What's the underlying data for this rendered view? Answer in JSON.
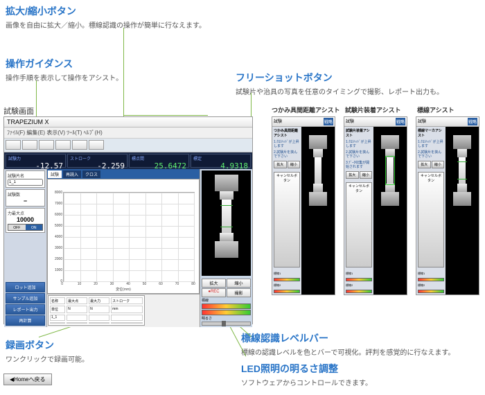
{
  "labels": {
    "zoom": {
      "title": "拡大/縮小ボタン",
      "desc": "画像を自由に拡大／縮小。標線認識の操作が簡単に行なえます。"
    },
    "guidance": {
      "title": "操作ガイダンス",
      "desc": "操作手順を表示して操作をアシスト。"
    },
    "freeshot": {
      "title": "フリーショットボタン",
      "desc": "試験片や治具の写真を任意のタイミングで撮影、レポート出力も。"
    },
    "record": {
      "title": "録画ボタン",
      "desc": "ワンクリックで録画可能。"
    },
    "levelbar": {
      "title": "標線認識レベルバー",
      "desc": "標線の認識レベルを色とバーで可視化。評判を感覚的に行なえます。"
    },
    "led": {
      "title": "LED照明の明るさ調整",
      "desc": "ソフトウェアからコントロールできます。"
    }
  },
  "screenLabel": "試験画面",
  "assists": {
    "grip": "つかみ具間距離アシスト",
    "mount": "試験片装着アシスト",
    "mark": "標線アシスト"
  },
  "display": {
    "force": {
      "label": "試験力",
      "value": "-12.57",
      "unit": "N"
    },
    "stroke": {
      "label": "ストローク",
      "value": "-2.259",
      "unit": "mm"
    },
    "ext": {
      "label": "標点間",
      "value": "25.6472",
      "unit": "mm"
    },
    "ratio": {
      "label": "標定",
      "value": "4.9318",
      "unit": "mm"
    }
  },
  "panel": {
    "specName": "試験片名",
    "count": "試験数",
    "countVal": "−",
    "maxForce": "力最大点",
    "maxForceVal": "10000",
    "unit": "N",
    "status": "ON"
  },
  "actions": [
    "ロット追加",
    "サンプル追加",
    "レポート出力",
    "再計算"
  ],
  "chartTabs": [
    "試験",
    "再読入",
    "クロス"
  ],
  "chart": {
    "xlabel": "変位(mm)",
    "ymax": 8000,
    "ymin": 0,
    "ystep": 1000,
    "xmax": 80,
    "xmin": 0,
    "xstep": 10
  },
  "table": {
    "cols": [
      "名称",
      "最大点",
      "最大力",
      "ストローク"
    ],
    "rows": [
      [
        "単位",
        "N",
        "N",
        "mm"
      ],
      [
        "1_1",
        "",
        "",
        ""
      ],
      [
        "",
        "",
        "",
        ""
      ]
    ]
  },
  "cam": {
    "zoomBtns": [
      "拡大",
      "縮小"
    ],
    "rec": "●REC",
    "shot": "撮影",
    "level": "標線",
    "bright": "明るさ"
  },
  "assist": {
    "hdr": "試験",
    "close": "×",
    "steps": [
      "1.ｸﾛｽﾍｯﾄﾞが上昇します",
      "2.試験片を挟んで下さい",
      "3.ﾃﾞｰﾀ収集が開始されます"
    ],
    "zoom": [
      "拡大",
      "縮小"
    ],
    "skip": "キャンセルボタン",
    "level": "標線1",
    "level2": "標線2"
  },
  "home": "◀Homeへ戻る"
}
